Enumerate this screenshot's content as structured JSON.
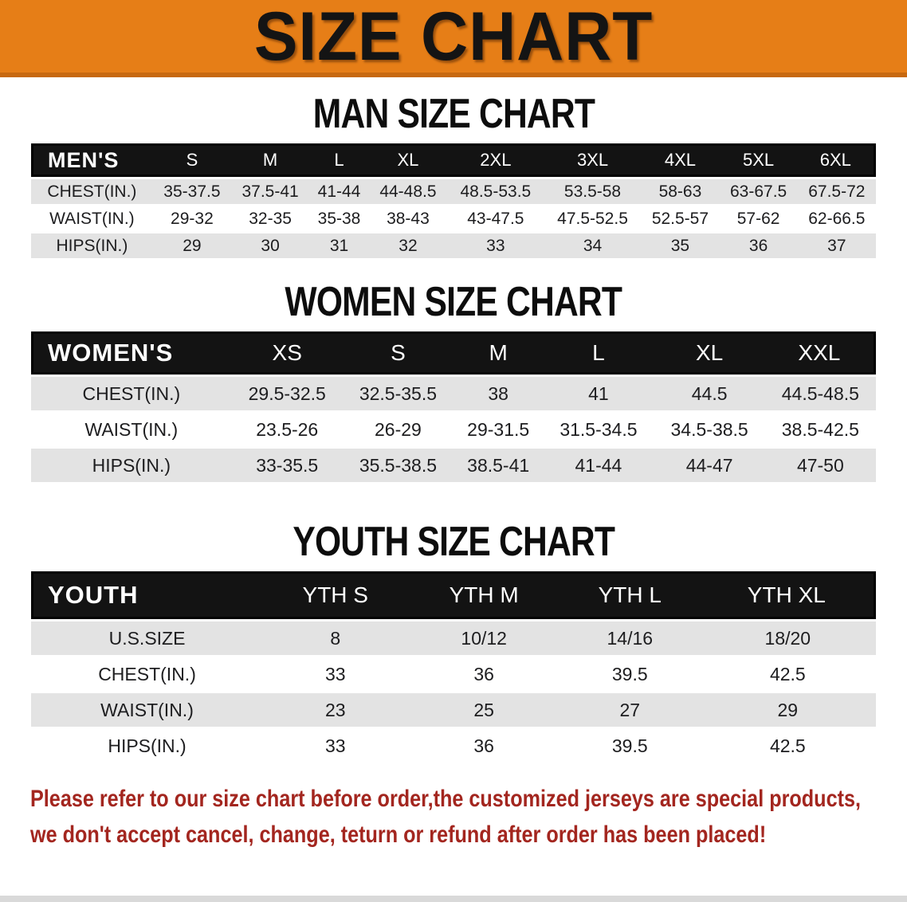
{
  "banner": {
    "title": "SIZE CHART"
  },
  "colors": {
    "banner_bg": "#e67e17",
    "banner_edge": "#c7680f",
    "table_header_bg": "#131313",
    "row_alt": "#e3e3e3",
    "disclaimer_text": "#a3261f"
  },
  "sections": [
    {
      "title": "MAN SIZE CHART",
      "header_label": "MEN'S",
      "columns": [
        "S",
        "M",
        "L",
        "XL",
        "2XL",
        "3XL",
        "4XL",
        "5XL",
        "6XL"
      ],
      "rows": [
        {
          "label": "CHEST(IN.)",
          "values": [
            "35-37.5",
            "37.5-41",
            "41-44",
            "44-48.5",
            "48.5-53.5",
            "53.5-58",
            "58-63",
            "63-67.5",
            "67.5-72"
          ]
        },
        {
          "label": "WAIST(IN.)",
          "values": [
            "29-32",
            "32-35",
            "35-38",
            "38-43",
            "43-47.5",
            "47.5-52.5",
            "52.5-57",
            "57-62",
            "62-66.5"
          ]
        },
        {
          "label": "HIPS(IN.)",
          "values": [
            "29",
            "30",
            "31",
            "32",
            "33",
            "34",
            "35",
            "36",
            "37"
          ]
        }
      ]
    },
    {
      "title": "WOMEN SIZE CHART",
      "header_label": "WOMEN'S",
      "columns": [
        "XS",
        "S",
        "M",
        "L",
        "XL",
        "XXL"
      ],
      "rows": [
        {
          "label": "CHEST(IN.)",
          "values": [
            "29.5-32.5",
            "32.5-35.5",
            "38",
            "41",
            "44.5",
            "44.5-48.5"
          ]
        },
        {
          "label": "WAIST(IN.)",
          "values": [
            "23.5-26",
            "26-29",
            "29-31.5",
            "31.5-34.5",
            "34.5-38.5",
            "38.5-42.5"
          ]
        },
        {
          "label": "HIPS(IN.)",
          "values": [
            "33-35.5",
            "35.5-38.5",
            "38.5-41",
            "41-44",
            "44-47",
            "47-50"
          ]
        }
      ]
    },
    {
      "title": "YOUTH SIZE CHART",
      "header_label": "YOUTH",
      "columns": [
        "YTH S",
        "YTH M",
        "YTH L",
        "YTH XL"
      ],
      "rows": [
        {
          "label": "U.S.SIZE",
          "values": [
            "8",
            "10/12",
            "14/16",
            "18/20"
          ]
        },
        {
          "label": "CHEST(IN.)",
          "values": [
            "33",
            "36",
            "39.5",
            "42.5"
          ]
        },
        {
          "label": "WAIST(IN.)",
          "values": [
            "23",
            "25",
            "27",
            "29"
          ]
        },
        {
          "label": "HIPS(IN.)",
          "values": [
            "33",
            "36",
            "39.5",
            "42.5"
          ]
        }
      ]
    }
  ],
  "disclaimer": {
    "line1": "Please refer to our size chart before order,the customized jerseys are special products,",
    "line2": "we don't accept cancel, change, teturn or refund after order has been placed!"
  }
}
